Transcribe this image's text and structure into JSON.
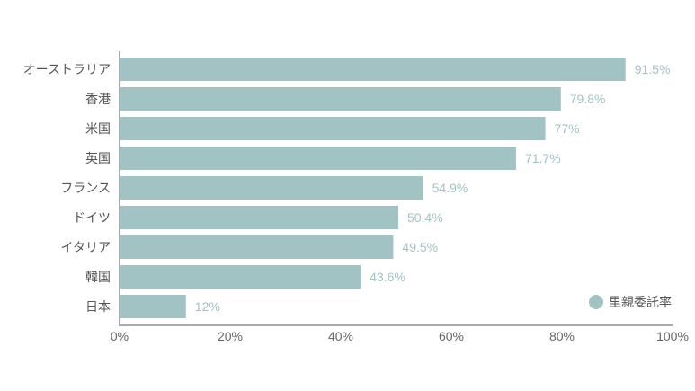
{
  "chart_data": {
    "type": "bar",
    "orientation": "horizontal",
    "categories": [
      "オーストラリア",
      "香港",
      "米国",
      "英国",
      "フランス",
      "ドイツ",
      "イタリア",
      "韓国",
      "日本"
    ],
    "series": [
      {
        "name": "里親委託率",
        "values": [
          91.5,
          79.8,
          77,
          71.7,
          54.9,
          50.4,
          49.5,
          43.6,
          12
        ],
        "value_labels": [
          "91.5%",
          "79.8%",
          "77%",
          "71.7%",
          "54.9%",
          "50.4%",
          "49.5%",
          "43.6%",
          "12%"
        ]
      }
    ],
    "xlim": [
      0,
      100
    ],
    "x_ticks": [
      0,
      20,
      40,
      60,
      80,
      100
    ],
    "x_tick_labels": [
      "0%",
      "20%",
      "40%",
      "60%",
      "80%",
      "100%"
    ],
    "title": "",
    "xlabel": "",
    "ylabel": "",
    "grid": false,
    "legend_position": "bottom-right",
    "colors": {
      "bar": "#a2c3c3",
      "value_label": "#a2c3c3",
      "axis": "#aaaaaa"
    }
  }
}
